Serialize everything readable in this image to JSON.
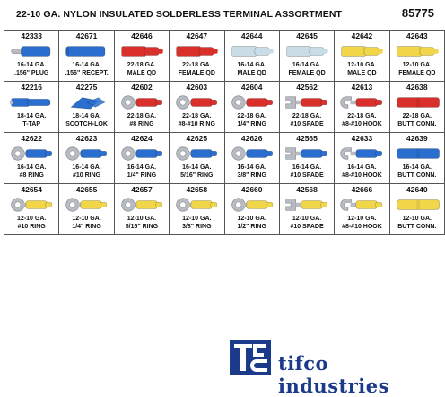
{
  "header": {
    "title": "22-10 GA. NYLON INSULATED SOLDERLESS TERMINAL ASSORTMENT",
    "kit_number": "85775"
  },
  "colors": {
    "red": "#d9302c",
    "blue": "#2a6fd0",
    "yellow": "#f1d64a",
    "clear": "#c9dde6",
    "logo": "#1b3a8a"
  },
  "items": [
    {
      "part": "42333",
      "line1": "16-14 GA.",
      "line2": ".156\" PLUG",
      "icon": "bullet-plug",
      "color": "blue"
    },
    {
      "part": "42671",
      "line1": "16-14 GA.",
      "line2": ".156\" RECEPT.",
      "icon": "bullet-receptacle",
      "color": "blue"
    },
    {
      "part": "42646",
      "line1": "22-18 GA.",
      "line2": "MALE QD",
      "icon": "disconnect",
      "color": "red"
    },
    {
      "part": "42647",
      "line1": "22-18 GA.",
      "line2": "FEMALE QD",
      "icon": "disconnect",
      "color": "red"
    },
    {
      "part": "42644",
      "line1": "16-14 GA.",
      "line2": "MALE QD",
      "icon": "disconnect",
      "color": "clear"
    },
    {
      "part": "42645",
      "line1": "16-14 GA.",
      "line2": "FEMALE QD",
      "icon": "disconnect",
      "color": "clear"
    },
    {
      "part": "42642",
      "line1": "12-10 GA.",
      "line2": "MALE QD",
      "icon": "disconnect",
      "color": "yellow"
    },
    {
      "part": "42643",
      "line1": "12-10 GA.",
      "line2": "FEMALE QD",
      "icon": "disconnect",
      "color": "yellow"
    },
    {
      "part": "42216",
      "line1": "18-14 GA.",
      "line2": "T-TAP",
      "icon": "t-tap",
      "color": "blue"
    },
    {
      "part": "42275",
      "line1": "18-14 GA.",
      "line2": "SCOTCH-LOK",
      "icon": "scotch-lok",
      "color": "blue"
    },
    {
      "part": "42602",
      "line1": "22-18 GA.",
      "line2": "#8 RING",
      "icon": "ring",
      "color": "red"
    },
    {
      "part": "42603",
      "line1": "22-18 GA.",
      "line2": "#8-#10 RING",
      "icon": "ring",
      "color": "red"
    },
    {
      "part": "42604",
      "line1": "22-18 GA.",
      "line2": "1/4\" RING",
      "icon": "ring",
      "color": "red"
    },
    {
      "part": "42562",
      "line1": "22-18 GA.",
      "line2": "#10 SPADE",
      "icon": "spade",
      "color": "red"
    },
    {
      "part": "42613",
      "line1": "22-18 GA.",
      "line2": "#8-#10 HOOK",
      "icon": "hook",
      "color": "red"
    },
    {
      "part": "42638",
      "line1": "22-18 GA.",
      "line2": "BUTT CONN.",
      "icon": "butt",
      "color": "red"
    },
    {
      "part": "42622",
      "line1": "16-14 GA.",
      "line2": "#8 RING",
      "icon": "ring",
      "color": "blue"
    },
    {
      "part": "42623",
      "line1": "16-14 GA.",
      "line2": "#10 RING",
      "icon": "ring",
      "color": "blue"
    },
    {
      "part": "42624",
      "line1": "16-14 GA.",
      "line2": "1/4\" RING",
      "icon": "ring",
      "color": "blue"
    },
    {
      "part": "42625",
      "line1": "16-14 GA.",
      "line2": "5/16\" RING",
      "icon": "ring",
      "color": "blue"
    },
    {
      "part": "42626",
      "line1": "16-14 GA.",
      "line2": "3/8\" RING",
      "icon": "ring",
      "color": "blue"
    },
    {
      "part": "42565",
      "line1": "16-14 GA.",
      "line2": "#10 SPADE",
      "icon": "spade",
      "color": "blue"
    },
    {
      "part": "42633",
      "line1": "16-14 GA.",
      "line2": "#8-#10 HOOK",
      "icon": "hook",
      "color": "blue"
    },
    {
      "part": "42639",
      "line1": "16-14 GA.",
      "line2": "BUTT CONN.",
      "icon": "butt",
      "color": "blue"
    },
    {
      "part": "42654",
      "line1": "12-10 GA.",
      "line2": "#10 RING",
      "icon": "ring",
      "color": "yellow"
    },
    {
      "part": "42655",
      "line1": "12-10 GA.",
      "line2": "1/4\" RING",
      "icon": "ring",
      "color": "yellow"
    },
    {
      "part": "42657",
      "line1": "12-10 GA.",
      "line2": "5/16\" RING",
      "icon": "ring",
      "color": "yellow"
    },
    {
      "part": "42658",
      "line1": "12-10 GA.",
      "line2": "3/8\" RING",
      "icon": "ring",
      "color": "yellow"
    },
    {
      "part": "42660",
      "line1": "12-10 GA.",
      "line2": "1/2\" RING",
      "icon": "ring",
      "color": "yellow"
    },
    {
      "part": "42568",
      "line1": "12-10 GA.",
      "line2": "#10 SPADE",
      "icon": "spade",
      "color": "yellow"
    },
    {
      "part": "42666",
      "line1": "12-10 GA.",
      "line2": "#8-#10 HOOK",
      "icon": "hook",
      "color": "yellow"
    },
    {
      "part": "42640",
      "line1": "12-10 GA.",
      "line2": "BUTT CONN.",
      "icon": "butt",
      "color": "yellow"
    }
  ],
  "brand": {
    "name": "tifco industries",
    "logo_letters": "TIFCO"
  }
}
